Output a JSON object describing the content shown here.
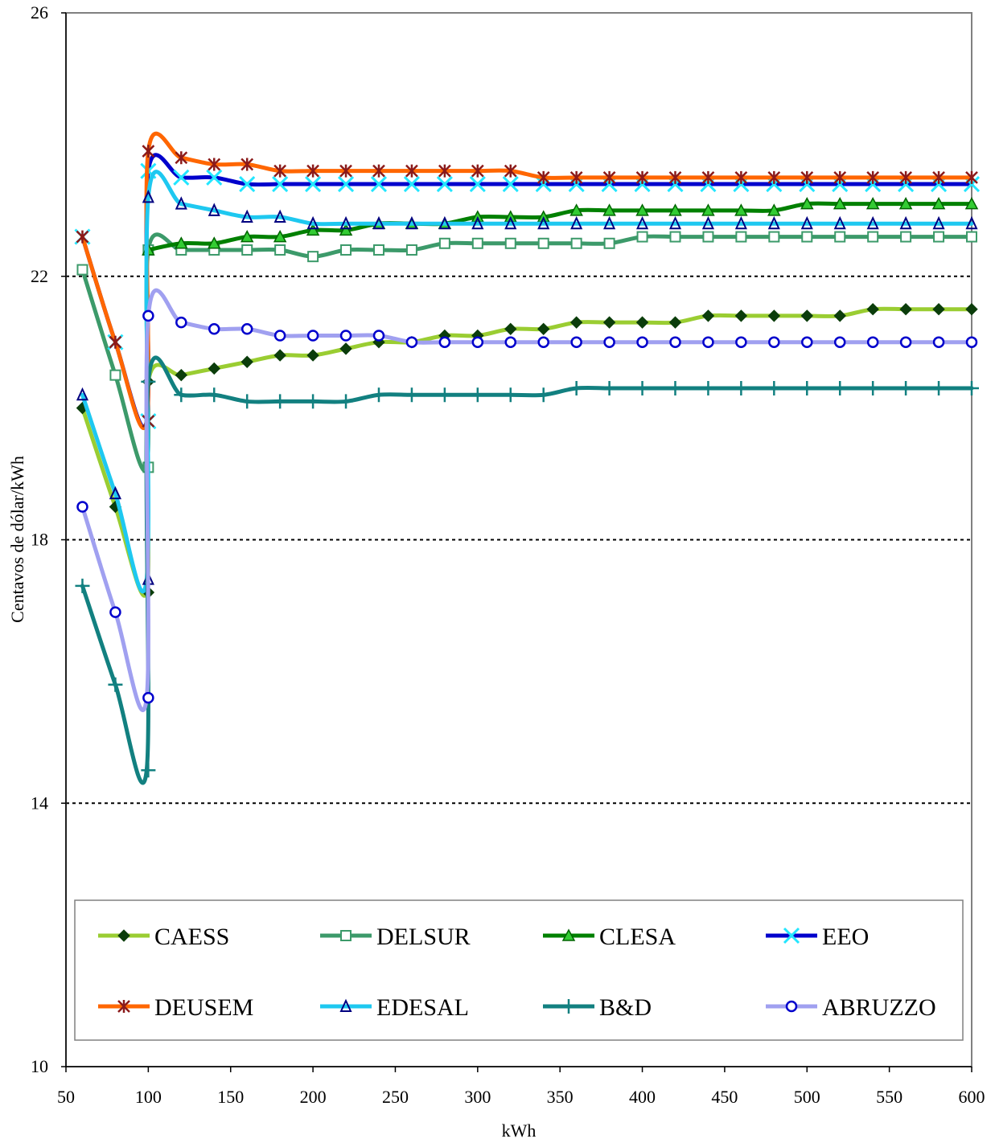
{
  "chart_data": {
    "type": "line",
    "title": "",
    "xlabel": "kWh",
    "ylabel": "Centavos de dólar/kWh",
    "xlim": [
      50,
      600
    ],
    "ylim": [
      10,
      26
    ],
    "xticks": [
      50,
      100,
      150,
      200,
      250,
      300,
      350,
      400,
      450,
      500,
      550,
      600
    ],
    "yticks": [
      10,
      14,
      18,
      22,
      26
    ],
    "grid": "horizontal dotted",
    "legend_placement": "bottom",
    "x": [
      60,
      80,
      99,
      100,
      120,
      140,
      160,
      180,
      200,
      220,
      240,
      260,
      280,
      300,
      320,
      340,
      360,
      380,
      400,
      420,
      440,
      460,
      480,
      500,
      520,
      540,
      560,
      580,
      600
    ],
    "series": [
      {
        "name": "CAESS",
        "color": "#9ACD32",
        "marker": "diamond",
        "marker_color": "#0b3d0b",
        "values": [
          20.0,
          18.5,
          17.2,
          20.4,
          20.5,
          20.6,
          20.7,
          20.8,
          20.8,
          20.9,
          21.0,
          21.0,
          21.1,
          21.1,
          21.2,
          21.2,
          21.3,
          21.3,
          21.3,
          21.3,
          21.4,
          21.4,
          21.4,
          21.4,
          21.4,
          21.5,
          21.5,
          21.5,
          21.5
        ]
      },
      {
        "name": "DELSUR",
        "color": "#3C9A6A",
        "marker": "square-open",
        "marker_color": "#3C9A6A",
        "values": [
          22.1,
          20.5,
          19.1,
          22.4,
          22.4,
          22.4,
          22.4,
          22.4,
          22.3,
          22.4,
          22.4,
          22.4,
          22.5,
          22.5,
          22.5,
          22.5,
          22.5,
          22.5,
          22.6,
          22.6,
          22.6,
          22.6,
          22.6,
          22.6,
          22.6,
          22.6,
          22.6,
          22.6,
          22.6
        ]
      },
      {
        "name": "CLESA",
        "color": "#008000",
        "marker": "triangle",
        "marker_color": "#33cc33",
        "values": [
          null,
          null,
          null,
          22.4,
          22.5,
          22.5,
          22.6,
          22.6,
          22.7,
          22.7,
          22.8,
          22.8,
          22.8,
          22.9,
          22.9,
          22.9,
          23.0,
          23.0,
          23.0,
          23.0,
          23.0,
          23.0,
          23.0,
          23.1,
          23.1,
          23.1,
          23.1,
          23.1,
          23.1
        ]
      },
      {
        "name": "EEO",
        "color": "#0000CC",
        "marker": "x",
        "marker_color": "#22E6FF",
        "values": [
          22.6,
          21.0,
          19.8,
          23.6,
          23.5,
          23.5,
          23.4,
          23.4,
          23.4,
          23.4,
          23.4,
          23.4,
          23.4,
          23.4,
          23.4,
          23.4,
          23.4,
          23.4,
          23.4,
          23.4,
          23.4,
          23.4,
          23.4,
          23.4,
          23.4,
          23.4,
          23.4,
          23.4,
          23.4
        ]
      },
      {
        "name": "DEUSEM",
        "color": "#FF6600",
        "marker": "asterisk",
        "marker_color": "#8B1A1A",
        "values": [
          22.6,
          21.0,
          19.8,
          23.9,
          23.8,
          23.7,
          23.7,
          23.6,
          23.6,
          23.6,
          23.6,
          23.6,
          23.6,
          23.6,
          23.6,
          23.5,
          23.5,
          23.5,
          23.5,
          23.5,
          23.5,
          23.5,
          23.5,
          23.5,
          23.5,
          23.5,
          23.5,
          23.5,
          23.5
        ]
      },
      {
        "name": "EDESAL",
        "color": "#1EC8F0",
        "marker": "triangle-open",
        "marker_color": "#000080",
        "values": [
          20.2,
          18.7,
          17.4,
          23.2,
          23.1,
          23.0,
          22.9,
          22.9,
          22.8,
          22.8,
          22.8,
          22.8,
          22.8,
          22.8,
          22.8,
          22.8,
          22.8,
          22.8,
          22.8,
          22.8,
          22.8,
          22.8,
          22.8,
          22.8,
          22.8,
          22.8,
          22.8,
          22.8,
          22.8
        ]
      },
      {
        "name": "B&D",
        "color": "#128080",
        "marker": "plus",
        "marker_color": "#128080",
        "values": [
          17.3,
          15.8,
          14.5,
          20.4,
          20.2,
          20.2,
          20.1,
          20.1,
          20.1,
          20.1,
          20.2,
          20.2,
          20.2,
          20.2,
          20.2,
          20.2,
          20.3,
          20.3,
          20.3,
          20.3,
          20.3,
          20.3,
          20.3,
          20.3,
          20.3,
          20.3,
          20.3,
          20.3,
          20.3
        ]
      },
      {
        "name": "ABRUZZO",
        "color": "#A0A0F0",
        "marker": "circle-open",
        "marker_color": "#0000CC",
        "values": [
          18.5,
          16.9,
          15.6,
          21.4,
          21.3,
          21.2,
          21.2,
          21.1,
          21.1,
          21.1,
          21.1,
          21.0,
          21.0,
          21.0,
          21.0,
          21.0,
          21.0,
          21.0,
          21.0,
          21.0,
          21.0,
          21.0,
          21.0,
          21.0,
          21.0,
          21.0,
          21.0,
          21.0,
          21.0
        ]
      }
    ]
  }
}
